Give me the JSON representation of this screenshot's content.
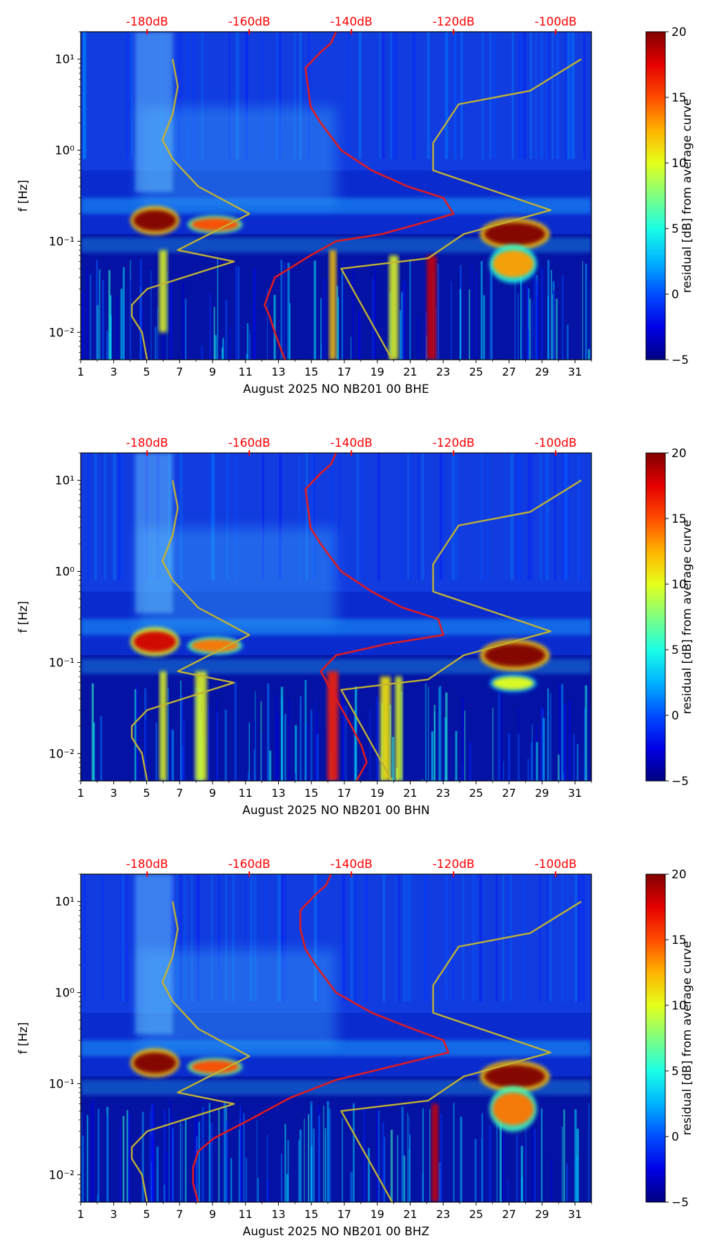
{
  "colorbar": {
    "label": "residual [dB] from average curve",
    "range": [
      -5,
      20
    ],
    "ticks": [
      "20",
      "15",
      "10",
      "5",
      "0",
      "−5"
    ],
    "tick_values": [
      20,
      15,
      10,
      5,
      0,
      -5
    ],
    "colormap": "jet"
  },
  "colors": {
    "dark_blue": "#00007f",
    "model_curve": "#c2b232",
    "median_curve": "#e31a1c",
    "top_labels": "#ff0000"
  },
  "chart_data": [
    {
      "type": "heatmap",
      "title": "",
      "xlabel": "August 2025 NO NB201 00 BHE",
      "ylabel": "f [Hz]",
      "x_ticks": [
        "1",
        "3",
        "5",
        "7",
        "9",
        "11",
        "13",
        "15",
        "17",
        "19",
        "21",
        "23",
        "25",
        "27",
        "29",
        "31"
      ],
      "xlim": [
        1,
        32
      ],
      "y_scale": "log",
      "y_ticks": [
        {
          "value": 10,
          "label": "10¹"
        },
        {
          "value": 1,
          "label": "10⁰"
        },
        {
          "value": 0.1,
          "label": "10⁻¹"
        },
        {
          "value": 0.01,
          "label": "10⁻²"
        }
      ],
      "ylim": [
        0.005,
        20
      ],
      "top_axis": {
        "labels": [
          "-180dB",
          "-160dB",
          "-140dB",
          "-120dB",
          "-100dB"
        ],
        "values": [
          -180,
          -160,
          -140,
          -120,
          -100
        ],
        "range": [
          -193,
          -93
        ]
      },
      "series": [
        {
          "kind": "model-curve",
          "points": [
            [
              -180,
              0.005
            ],
            [
              -181,
              0.01
            ],
            [
              -183,
              0.015
            ],
            [
              -183,
              0.02
            ],
            [
              -180,
              0.03
            ],
            [
              -163,
              0.06
            ],
            [
              -174,
              0.08
            ],
            [
              -160,
              0.2
            ],
            [
              -170,
              0.4
            ],
            [
              -175,
              0.8
            ],
            [
              -177,
              1.3
            ],
            [
              -175,
              2.5
            ],
            [
              -174,
              5
            ],
            [
              -175,
              10
            ]
          ]
        },
        {
          "kind": "model-curve",
          "points": [
            [
              -132,
              0.005
            ],
            [
              -142,
              0.05
            ],
            [
              -125,
              0.065
            ],
            [
              -118,
              0.12
            ],
            [
              -101,
              0.22
            ],
            [
              -124,
              0.6
            ],
            [
              -124,
              1.2
            ],
            [
              -119,
              3.2
            ],
            [
              -105,
              4.5
            ],
            [
              -95,
              10
            ]
          ]
        },
        {
          "kind": "median-curve",
          "points": [
            [
              -153,
              0.005
            ],
            [
              -154,
              0.007
            ],
            [
              -155,
              0.01
            ],
            [
              -156,
              0.015
            ],
            [
              -157,
              0.02
            ],
            [
              -155,
              0.04
            ],
            [
              -148,
              0.07
            ],
            [
              -143,
              0.1
            ],
            [
              -134,
              0.12
            ],
            [
              -126,
              0.16
            ],
            [
              -120,
              0.2
            ],
            [
              -122,
              0.3
            ],
            [
              -129,
              0.4
            ],
            [
              -136,
              0.6
            ],
            [
              -142,
              1
            ],
            [
              -146,
              2
            ],
            [
              -148,
              3
            ],
            [
              -148.5,
              5
            ],
            [
              -149,
              8
            ],
            [
              -146,
              12
            ],
            [
              -144,
              15
            ],
            [
              -143,
              20
            ]
          ]
        }
      ],
      "hotspots": [
        {
          "x": [
            4.2,
            6.8
          ],
          "f": [
            0.13,
            0.22
          ],
          "level": 20
        },
        {
          "x": [
            7.7,
            10.6
          ],
          "f": [
            0.13,
            0.18
          ],
          "level": 15
        },
        {
          "x": [
            25.5,
            29.2
          ],
          "f": [
            0.09,
            0.16
          ],
          "level": 20
        },
        {
          "x": [
            26.0,
            28.5
          ],
          "f": [
            0.04,
            0.08
          ],
          "level": 13
        }
      ],
      "bands": [
        {
          "x": 6.0,
          "f": [
            0.01,
            0.08
          ],
          "level": 10
        },
        {
          "x": 16.3,
          "f": [
            0.005,
            0.08
          ],
          "level": 12
        },
        {
          "x": 20.0,
          "f": [
            0.005,
            0.07
          ],
          "level": 10
        },
        {
          "x": 22.3,
          "f": [
            0.005,
            0.07
          ],
          "level": 18
        }
      ]
    },
    {
      "type": "heatmap",
      "title": "",
      "xlabel": "August 2025 NO NB201 00 BHN",
      "ylabel": "f [Hz]",
      "x_ticks": [
        "1",
        "3",
        "5",
        "7",
        "9",
        "11",
        "13",
        "15",
        "17",
        "19",
        "21",
        "23",
        "25",
        "27",
        "29",
        "31"
      ],
      "xlim": [
        1,
        32
      ],
      "y_scale": "log",
      "y_ticks": [
        {
          "value": 10,
          "label": "10¹"
        },
        {
          "value": 1,
          "label": "10⁰"
        },
        {
          "value": 0.1,
          "label": "10⁻¹"
        },
        {
          "value": 0.01,
          "label": "10⁻²"
        }
      ],
      "ylim": [
        0.005,
        20
      ],
      "top_axis": {
        "labels": [
          "-180dB",
          "-160dB",
          "-140dB",
          "-120dB",
          "-100dB"
        ],
        "values": [
          -180,
          -160,
          -140,
          -120,
          -100
        ],
        "range": [
          -193,
          -93
        ]
      },
      "series": [
        {
          "kind": "model-curve",
          "points": [
            [
              -180,
              0.005
            ],
            [
              -181,
              0.01
            ],
            [
              -183,
              0.015
            ],
            [
              -183,
              0.02
            ],
            [
              -180,
              0.03
            ],
            [
              -163,
              0.06
            ],
            [
              -174,
              0.08
            ],
            [
              -160,
              0.2
            ],
            [
              -170,
              0.4
            ],
            [
              -175,
              0.8
            ],
            [
              -177,
              1.3
            ],
            [
              -175,
              2.5
            ],
            [
              -174,
              5
            ],
            [
              -175,
              10
            ]
          ]
        },
        {
          "kind": "model-curve",
          "points": [
            [
              -132,
              0.005
            ],
            [
              -142,
              0.05
            ],
            [
              -125,
              0.065
            ],
            [
              -118,
              0.12
            ],
            [
              -101,
              0.22
            ],
            [
              -124,
              0.6
            ],
            [
              -124,
              1.2
            ],
            [
              -119,
              3.2
            ],
            [
              -105,
              4.5
            ],
            [
              -95,
              10
            ]
          ]
        },
        {
          "kind": "median-curve",
          "points": [
            [
              -139,
              0.005
            ],
            [
              -137,
              0.008
            ],
            [
              -138,
              0.012
            ],
            [
              -140,
              0.02
            ],
            [
              -144,
              0.05
            ],
            [
              -146,
              0.08
            ],
            [
              -143,
              0.12
            ],
            [
              -133,
              0.16
            ],
            [
              -122,
              0.2
            ],
            [
              -123,
              0.3
            ],
            [
              -130,
              0.4
            ],
            [
              -136,
              0.6
            ],
            [
              -142,
              1
            ],
            [
              -146,
              2
            ],
            [
              -148,
              3
            ],
            [
              -148.5,
              5
            ],
            [
              -149,
              8
            ],
            [
              -146,
              12
            ],
            [
              -144,
              15
            ],
            [
              -143,
              20
            ]
          ]
        }
      ],
      "hotspots": [
        {
          "x": [
            4.2,
            6.8
          ],
          "f": [
            0.13,
            0.22
          ],
          "level": 18
        },
        {
          "x": [
            7.7,
            10.6
          ],
          "f": [
            0.13,
            0.18
          ],
          "level": 14
        },
        {
          "x": [
            25.5,
            29.2
          ],
          "f": [
            0.09,
            0.16
          ],
          "level": 20
        },
        {
          "x": [
            26.0,
            28.5
          ],
          "f": [
            0.05,
            0.07
          ],
          "level": 10
        }
      ],
      "bands": [
        {
          "x": 6.0,
          "f": [
            0.005,
            0.08
          ],
          "level": 10
        },
        {
          "x": 8.3,
          "f": [
            0.005,
            0.08
          ],
          "level": 10
        },
        {
          "x": 16.3,
          "f": [
            0.005,
            0.08
          ],
          "level": 16
        },
        {
          "x": 19.5,
          "f": [
            0.005,
            0.07
          ],
          "level": 11
        },
        {
          "x": 20.3,
          "f": [
            0.005,
            0.07
          ],
          "level": 10
        }
      ]
    },
    {
      "type": "heatmap",
      "title": "",
      "xlabel": "August 2025 NO NB201 00 BHZ",
      "ylabel": "f [Hz]",
      "x_ticks": [
        "1",
        "3",
        "5",
        "7",
        "9",
        "11",
        "13",
        "15",
        "17",
        "19",
        "21",
        "23",
        "25",
        "27",
        "29",
        "31"
      ],
      "xlim": [
        1,
        32
      ],
      "y_scale": "log",
      "y_ticks": [
        {
          "value": 10,
          "label": "10¹"
        },
        {
          "value": 1,
          "label": "10⁰"
        },
        {
          "value": 0.1,
          "label": "10⁻¹"
        },
        {
          "value": 0.01,
          "label": "10⁻²"
        }
      ],
      "ylim": [
        0.005,
        20
      ],
      "top_axis": {
        "labels": [
          "-180dB",
          "-160dB",
          "-140dB",
          "-120dB",
          "-100dB"
        ],
        "values": [
          -180,
          -160,
          -140,
          -120,
          -100
        ],
        "range": [
          -193,
          -93
        ]
      },
      "series": [
        {
          "kind": "model-curve",
          "points": [
            [
              -180,
              0.005
            ],
            [
              -181,
              0.01
            ],
            [
              -183,
              0.015
            ],
            [
              -183,
              0.02
            ],
            [
              -180,
              0.03
            ],
            [
              -163,
              0.06
            ],
            [
              -174,
              0.08
            ],
            [
              -160,
              0.2
            ],
            [
              -170,
              0.4
            ],
            [
              -175,
              0.8
            ],
            [
              -177,
              1.3
            ],
            [
              -175,
              2.5
            ],
            [
              -174,
              5
            ],
            [
              -175,
              10
            ]
          ]
        },
        {
          "kind": "model-curve",
          "points": [
            [
              -132,
              0.005
            ],
            [
              -142,
              0.05
            ],
            [
              -125,
              0.065
            ],
            [
              -118,
              0.12
            ],
            [
              -101,
              0.22
            ],
            [
              -124,
              0.6
            ],
            [
              -124,
              1.2
            ],
            [
              -119,
              3.2
            ],
            [
              -105,
              4.5
            ],
            [
              -95,
              10
            ]
          ]
        },
        {
          "kind": "median-curve",
          "points": [
            [
              -170,
              0.005
            ],
            [
              -171,
              0.008
            ],
            [
              -171,
              0.012
            ],
            [
              -170,
              0.018
            ],
            [
              -167,
              0.025
            ],
            [
              -160,
              0.04
            ],
            [
              -152,
              0.07
            ],
            [
              -143,
              0.11
            ],
            [
              -131,
              0.16
            ],
            [
              -121,
              0.22
            ],
            [
              -122,
              0.3
            ],
            [
              -129,
              0.42
            ],
            [
              -136,
              0.6
            ],
            [
              -143,
              1
            ],
            [
              -147,
              2
            ],
            [
              -149,
              3
            ],
            [
              -150,
              5
            ],
            [
              -150,
              8
            ],
            [
              -147,
              12
            ],
            [
              -145,
              15
            ],
            [
              -144,
              20
            ]
          ]
        }
      ],
      "hotspots": [
        {
          "x": [
            4.2,
            6.8
          ],
          "f": [
            0.13,
            0.22
          ],
          "level": 20
        },
        {
          "x": [
            7.7,
            10.6
          ],
          "f": [
            0.13,
            0.18
          ],
          "level": 15
        },
        {
          "x": [
            25.5,
            29.2
          ],
          "f": [
            0.09,
            0.16
          ],
          "level": 20
        },
        {
          "x": [
            26.0,
            28.5
          ],
          "f": [
            0.035,
            0.08
          ],
          "level": 14
        }
      ],
      "bands": [
        {
          "x": 22.5,
          "f": [
            0.005,
            0.06
          ],
          "level": 18
        }
      ]
    }
  ]
}
